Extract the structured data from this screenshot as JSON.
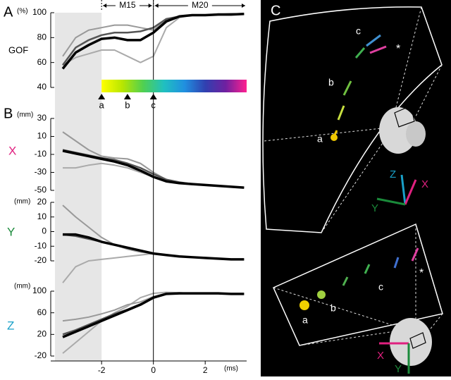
{
  "chart_data": [
    {
      "type": "line",
      "panel": "A",
      "unit": "(%)",
      "ylabel": "GOF",
      "ylabel_color": "#000000",
      "xlim": [
        -3.8,
        3.6
      ],
      "ylim": [
        40,
        100
      ],
      "yticks": [
        40,
        60,
        80,
        100
      ],
      "shade": [
        -3.8,
        -2
      ],
      "intervals": [
        {
          "label": "M15",
          "range": [
            -2,
            0
          ]
        },
        {
          "label": "M20",
          "range": [
            0,
            3.6
          ]
        }
      ],
      "colorbar": {
        "range": [
          -2,
          3.6
        ],
        "colors": [
          "#ffff00",
          "#b8e600",
          "#50d050",
          "#20c0c0",
          "#2090e0",
          "#3040b0",
          "#7020a0",
          "#ff2090"
        ]
      },
      "markers": [
        {
          "label": "a",
          "x": -2
        },
        {
          "label": "b",
          "x": -1
        },
        {
          "label": "c",
          "x": 0
        }
      ],
      "x": [
        -3.5,
        -3,
        -2.5,
        -2,
        -1.5,
        -1,
        -0.5,
        0,
        0.5,
        1,
        1.5,
        2,
        2.5,
        3,
        3.5
      ],
      "series": [
        {
          "color": "#aaaaaa",
          "width": 2,
          "values": [
            58,
            64,
            67,
            70,
            70,
            65,
            60,
            65,
            88,
            96,
            98,
            98,
            99,
            99,
            99
          ]
        },
        {
          "color": "#999999",
          "width": 2,
          "values": [
            65,
            80,
            86,
            88,
            90,
            90,
            88,
            86,
            94,
            97,
            98,
            98,
            99,
            99,
            99
          ]
        },
        {
          "color": "#555555",
          "width": 2.5,
          "values": [
            58,
            72,
            78,
            82,
            84,
            84,
            85,
            88,
            95,
            97,
            98,
            98,
            98.5,
            99,
            99
          ]
        },
        {
          "color": "#000000",
          "width": 3.5,
          "values": [
            55,
            68,
            74,
            79,
            80,
            78,
            78,
            84,
            93,
            97,
            98,
            98,
            98.5,
            98.5,
            99
          ]
        }
      ]
    },
    {
      "type": "line",
      "panel": "B",
      "unit": "(mm)",
      "ylabel": "X",
      "ylabel_color": "#e0207f",
      "xlim": [
        -3.8,
        3.6
      ],
      "ylim": [
        -50,
        30
      ],
      "yticks": [
        -50,
        -30,
        -10,
        10,
        30
      ],
      "x": [
        -3.5,
        -3,
        -2.5,
        -2,
        -1.5,
        -1,
        -0.5,
        0,
        0.5,
        1,
        1.5,
        2,
        2.5,
        3,
        3.5
      ],
      "series": [
        {
          "color": "#aaaaaa",
          "width": 2,
          "values": [
            -25,
            -25,
            -22,
            -20,
            -22,
            -25,
            -30,
            -35,
            -40,
            -42,
            -43,
            -44,
            -45,
            -46,
            -47
          ]
        },
        {
          "color": "#999999",
          "width": 2,
          "values": [
            15,
            5,
            -5,
            -12,
            -14,
            -15,
            -20,
            -30,
            -38,
            -42,
            -43,
            -44,
            -45,
            -46,
            -47
          ]
        },
        {
          "color": "#555555",
          "width": 2.5,
          "values": [
            -5,
            -8,
            -11,
            -14,
            -16,
            -20,
            -25,
            -32,
            -38,
            -41,
            -43,
            -44,
            -45,
            -46,
            -47
          ]
        },
        {
          "color": "#000000",
          "width": 3.5,
          "values": [
            -6,
            -9,
            -12,
            -15,
            -18,
            -22,
            -28,
            -35,
            -40,
            -42,
            -43,
            -44,
            -45,
            -46,
            -47
          ]
        }
      ]
    },
    {
      "type": "line",
      "unit": "(mm)",
      "ylabel": "Y",
      "ylabel_color": "#1a8a3a",
      "xlim": [
        -3.8,
        3.6
      ],
      "ylim": [
        -20,
        20
      ],
      "yticks": [
        -20,
        -10,
        0,
        10,
        20
      ],
      "x": [
        -3.5,
        -3,
        -2.5,
        -2,
        -1.5,
        -1,
        -0.5,
        0,
        0.5,
        1,
        1.5,
        2,
        2.5,
        3,
        3.5
      ],
      "series": [
        {
          "color": "#aaaaaa",
          "width": 2,
          "values": [
            -35,
            -24,
            -20,
            -19,
            -18,
            -17,
            -16,
            -15,
            -16,
            -17,
            -17.5,
            -18,
            -18.5,
            -19,
            -19
          ]
        },
        {
          "color": "#999999",
          "width": 2,
          "values": [
            18,
            10,
            3,
            -4,
            -9,
            -12,
            -14,
            -15,
            -16,
            -17,
            -17.5,
            -18,
            -18.5,
            -19,
            -19
          ]
        },
        {
          "color": "#555555",
          "width": 2.5,
          "values": [
            -2,
            -3,
            -5,
            -7,
            -9,
            -11,
            -13,
            -15,
            -16,
            -17,
            -17.5,
            -18,
            -18.5,
            -19,
            -19
          ]
        },
        {
          "color": "#000000",
          "width": 3.5,
          "values": [
            -2,
            -2,
            -4,
            -7,
            -9,
            -11,
            -13,
            -15,
            -16,
            -17,
            -17.5,
            -18,
            -18.5,
            -19,
            -19
          ]
        }
      ]
    },
    {
      "type": "line",
      "unit": "(mm)",
      "ylabel": "Z",
      "ylabel_color": "#19a0c8",
      "xlabel": "(ms)",
      "xlim": [
        -3.8,
        3.6
      ],
      "xticks": [
        -2,
        0,
        2
      ],
      "ylim": [
        -20,
        100
      ],
      "yticks": [
        -20,
        20,
        60,
        100
      ],
      "x": [
        -3.5,
        -3,
        -2.5,
        -2,
        -1.5,
        -1,
        -0.5,
        0,
        0.5,
        1,
        1.5,
        2,
        2.5,
        3,
        3.5
      ],
      "series": [
        {
          "color": "#aaaaaa",
          "width": 2,
          "values": [
            -15,
            5,
            25,
            45,
            60,
            72,
            88,
            96,
            98,
            97,
            96,
            96,
            96,
            95,
            95
          ]
        },
        {
          "color": "#999999",
          "width": 2,
          "values": [
            45,
            48,
            52,
            58,
            65,
            75,
            80,
            90,
            96,
            97,
            96,
            96,
            96,
            95,
            95
          ]
        },
        {
          "color": "#555555",
          "width": 2.5,
          "values": [
            20,
            28,
            38,
            48,
            58,
            66,
            76,
            88,
            95,
            96,
            96,
            96,
            96,
            95,
            95
          ]
        },
        {
          "color": "#000000",
          "width": 3.5,
          "values": [
            15,
            25,
            35,
            45,
            55,
            65,
            75,
            88,
            95,
            96,
            96,
            96,
            96,
            95,
            95
          ]
        }
      ]
    }
  ],
  "panel_c": {
    "label": "C",
    "top": {
      "labels": [
        "a",
        "b",
        "c"
      ],
      "star": "*",
      "axes": [
        "X",
        "Y",
        "Z"
      ]
    },
    "bottom": {
      "labels": [
        "a",
        "b",
        "c"
      ],
      "star": "*",
      "axes": [
        "X",
        "Y"
      ]
    }
  }
}
